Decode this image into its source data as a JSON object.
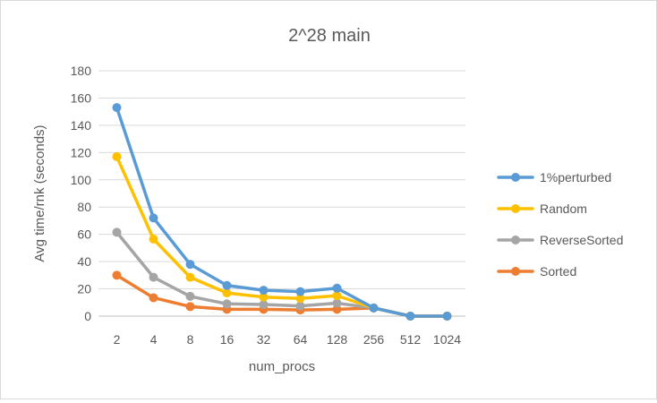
{
  "chart_data": {
    "type": "line",
    "title": "2^28 main",
    "xlabel": "num_procs",
    "ylabel": "Avg time/rnk (seconds)",
    "categories": [
      "2",
      "4",
      "8",
      "16",
      "32",
      "64",
      "128",
      "256",
      "512",
      "1024"
    ],
    "ylim": [
      0,
      180
    ],
    "yticks": [
      0,
      20,
      40,
      60,
      80,
      100,
      120,
      140,
      160,
      180
    ],
    "grid": true,
    "legend_position": "right",
    "series": [
      {
        "name": "1%perturbed",
        "color": "#5b9bd5",
        "values": [
          153,
          72,
          38,
          22.5,
          19,
          18,
          20.5,
          6,
          0,
          0
        ]
      },
      {
        "name": "Random",
        "color": "#ffc000",
        "values": [
          117,
          56.5,
          28.5,
          17,
          14,
          13,
          15,
          6,
          0,
          0
        ]
      },
      {
        "name": "ReverseSorted",
        "color": "#a5a5a5",
        "values": [
          61.5,
          28.5,
          14.5,
          9,
          8.5,
          7.5,
          9.5,
          6,
          0,
          0
        ]
      },
      {
        "name": "Sorted",
        "color": "#ed7d31",
        "values": [
          30,
          13.5,
          7,
          5,
          5,
          4.5,
          5,
          6,
          0,
          0
        ]
      }
    ]
  }
}
